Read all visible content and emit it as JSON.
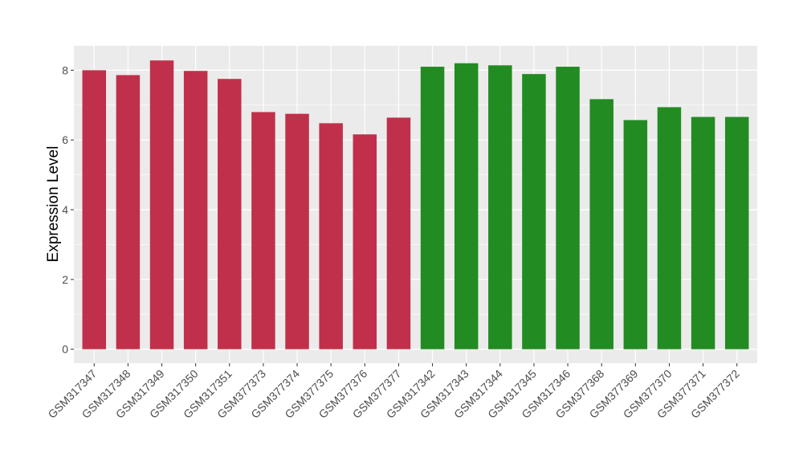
{
  "chart_data": {
    "type": "bar",
    "title": "",
    "xlabel": "",
    "ylabel": "Expression Level",
    "ylim": [
      -0.4,
      8.7
    ],
    "yticks": [
      0,
      2,
      4,
      6,
      8
    ],
    "grid": true,
    "background": "#ebebeb",
    "gridline_color": "#ffffff",
    "categories": [
      "GSM317347",
      "GSM317348",
      "GSM317349",
      "GSM317350",
      "GSM317351",
      "GSM377373",
      "GSM377374",
      "GSM377375",
      "GSM377376",
      "GSM377377",
      "GSM317342",
      "GSM317343",
      "GSM317344",
      "GSM317345",
      "GSM317346",
      "GSM377368",
      "GSM377369",
      "GSM377370",
      "GSM377371",
      "GSM377372"
    ],
    "values": [
      8.0,
      7.86,
      8.28,
      7.98,
      7.75,
      6.8,
      6.75,
      6.48,
      6.16,
      6.64,
      8.1,
      8.2,
      8.14,
      7.89,
      8.1,
      7.17,
      6.57,
      6.94,
      6.66,
      6.66
    ],
    "colors": [
      "#c0304a",
      "#c0304a",
      "#c0304a",
      "#c0304a",
      "#c0304a",
      "#c0304a",
      "#c0304a",
      "#c0304a",
      "#c0304a",
      "#c0304a",
      "#228b22",
      "#228b22",
      "#228b22",
      "#228b22",
      "#228b22",
      "#228b22",
      "#228b22",
      "#228b22",
      "#228b22",
      "#228b22"
    ]
  }
}
